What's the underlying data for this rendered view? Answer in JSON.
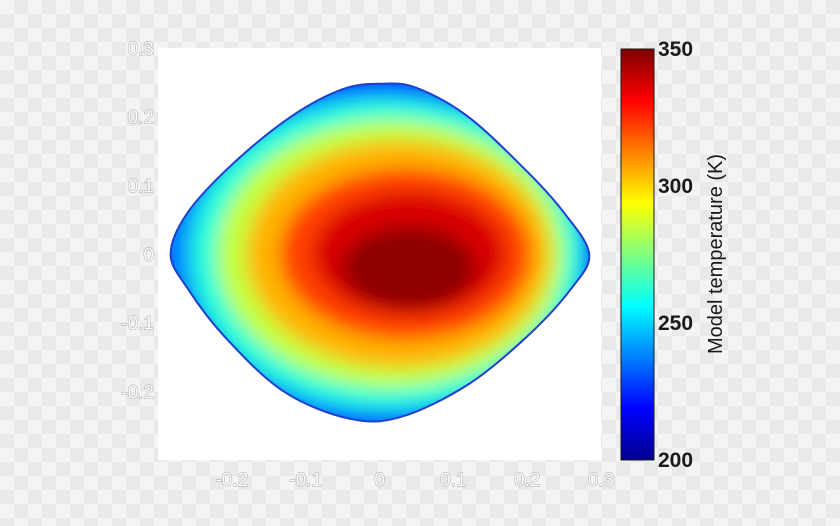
{
  "chart_data": {
    "type": "heatmap",
    "title": "",
    "xlabel": "",
    "ylabel": "",
    "x_ticks": [
      "-0.2",
      "-0.1",
      "0",
      "0.1",
      "0.2",
      "0.3"
    ],
    "y_ticks": [
      "0.3",
      "0.2",
      "0.1",
      "0",
      "-0.1",
      "-0.2"
    ],
    "xlim": [
      -0.3,
      0.3
    ],
    "ylim": [
      -0.3,
      0.3
    ],
    "colorbar": {
      "label": "Model temperature (K)",
      "ticks": [
        "350",
        "300",
        "250",
        "200"
      ],
      "range": [
        200,
        350
      ],
      "colormap": "jet",
      "colors": [
        "#00008f",
        "#0000ff",
        "#00ffff",
        "#ffff00",
        "#ff0000",
        "#800000"
      ]
    },
    "shape": {
      "outline": [
        [
          0.003,
          0.248
        ],
        [
          0.05,
          0.242
        ],
        [
          0.12,
          0.2
        ],
        [
          0.2,
          0.12
        ],
        [
          0.25,
          0.06
        ],
        [
          0.284,
          0.0
        ],
        [
          0.26,
          -0.05
        ],
        [
          0.2,
          -0.12
        ],
        [
          0.12,
          -0.19
        ],
        [
          0.03,
          -0.237
        ],
        [
          -0.04,
          -0.24
        ],
        [
          -0.13,
          -0.2
        ],
        [
          -0.21,
          -0.12
        ],
        [
          -0.26,
          -0.05
        ],
        [
          -0.283,
          0.0
        ],
        [
          -0.26,
          0.06
        ],
        [
          -0.2,
          0.13
        ],
        [
          -0.12,
          0.2
        ],
        [
          -0.05,
          0.24
        ]
      ],
      "temperature_zones": [
        {
          "center": [
            0.0,
            0.0
          ],
          "rx": 0.29,
          "ry": 0.25,
          "temperature": 240
        },
        {
          "center": [
            0.01,
            0.0
          ],
          "rx": 0.265,
          "ry": 0.225,
          "temperature": 262
        },
        {
          "center": [
            0.015,
            0.0
          ],
          "rx": 0.235,
          "ry": 0.195,
          "temperature": 285
        },
        {
          "center": [
            0.025,
            0.0
          ],
          "rx": 0.205,
          "ry": 0.165,
          "temperature": 305
        },
        {
          "center": [
            0.035,
            0.0
          ],
          "rx": 0.17,
          "ry": 0.125,
          "temperature": 322
        },
        {
          "center": [
            0.04,
            0.0
          ],
          "rx": 0.13,
          "ry": 0.09,
          "temperature": 337
        },
        {
          "center": [
            0.04,
            -0.02
          ],
          "rx": 0.09,
          "ry": 0.06,
          "temperature": 348
        }
      ]
    }
  }
}
